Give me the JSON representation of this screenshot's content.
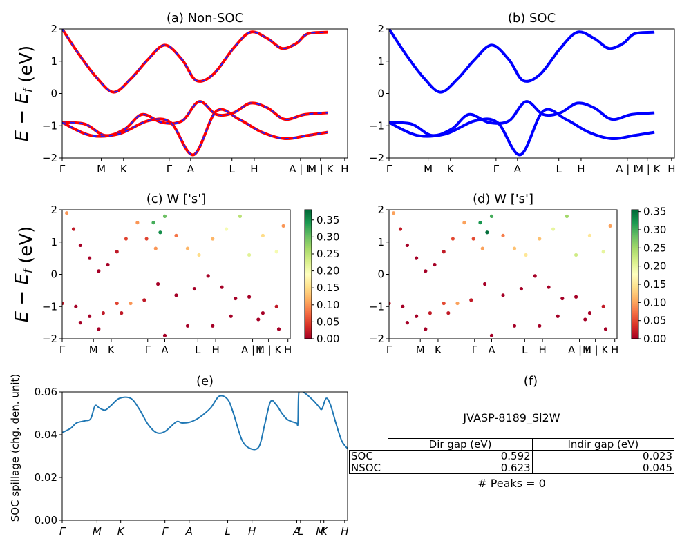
{
  "chart_data": [
    {
      "id": "a",
      "type": "line",
      "title": "(a) Non-SOC",
      "ylabel": "E − E_f (eV)",
      "ylim": [
        -2,
        2
      ],
      "yticks": [
        "2",
        "1",
        "0",
        "−1",
        "−2"
      ],
      "kpath_labels": [
        "Γ",
        "M",
        "K",
        "Γ",
        "A",
        "L",
        "H",
        "A | L",
        "M | K",
        "H"
      ],
      "series": [
        {
          "values": [
            [
              0,
              2.0
            ],
            [
              0.06,
              1.2
            ],
            [
              0.12,
              0.5
            ],
            [
              0.18,
              0.04
            ],
            [
              0.24,
              0.45
            ],
            [
              0.3,
              1.05
            ],
            [
              0.36,
              1.5
            ],
            [
              0.42,
              1.05
            ],
            [
              0.47,
              0.4
            ],
            [
              0.53,
              0.6
            ],
            [
              0.6,
              1.4
            ],
            [
              0.66,
              1.9
            ],
            [
              0.72,
              1.7
            ],
            [
              0.77,
              1.4
            ],
            [
              0.82,
              1.55
            ],
            [
              0.86,
              1.85
            ],
            [
              0.93,
              1.9
            ]
          ]
        },
        {
          "values": [
            [
              0,
              -0.9
            ],
            [
              0.08,
              -0.95
            ],
            [
              0.15,
              -1.3
            ],
            [
              0.22,
              -1.1
            ],
            [
              0.28,
              -0.65
            ],
            [
              0.35,
              -0.9
            ],
            [
              0.42,
              -0.85
            ],
            [
              0.48,
              -0.25
            ],
            [
              0.54,
              -0.65
            ],
            [
              0.6,
              -0.6
            ],
            [
              0.66,
              -0.3
            ],
            [
              0.72,
              -0.45
            ],
            [
              0.78,
              -0.8
            ],
            [
              0.85,
              -0.65
            ],
            [
              0.93,
              -0.6
            ]
          ]
        },
        {
          "values": [
            [
              0,
              -0.9
            ],
            [
              0.1,
              -1.3
            ],
            [
              0.2,
              -1.25
            ],
            [
              0.3,
              -0.85
            ],
            [
              0.38,
              -0.9
            ],
            [
              0.46,
              -1.9
            ],
            [
              0.54,
              -0.55
            ],
            [
              0.62,
              -0.8
            ],
            [
              0.7,
              -1.2
            ],
            [
              0.78,
              -1.4
            ],
            [
              0.86,
              -1.3
            ],
            [
              0.93,
              -1.2
            ]
          ]
        }
      ],
      "color": "#ff0000",
      "dash_color": "#1f1fff"
    },
    {
      "id": "b",
      "type": "line",
      "title": "(b) SOC",
      "ylabel": "",
      "ylim": [
        -2,
        2
      ],
      "yticks": [
        "2",
        "1",
        "0",
        "−1",
        "−2"
      ],
      "kpath_labels": [
        "Γ",
        "M",
        "K",
        "Γ",
        "A",
        "L",
        "H",
        "A | L",
        "M | K",
        "H"
      ],
      "series": [
        {
          "values": [
            [
              0,
              2.0
            ],
            [
              0.06,
              1.2
            ],
            [
              0.12,
              0.5
            ],
            [
              0.18,
              0.04
            ],
            [
              0.24,
              0.45
            ],
            [
              0.3,
              1.05
            ],
            [
              0.36,
              1.5
            ],
            [
              0.42,
              1.05
            ],
            [
              0.47,
              0.4
            ],
            [
              0.53,
              0.6
            ],
            [
              0.6,
              1.4
            ],
            [
              0.66,
              1.9
            ],
            [
              0.72,
              1.7
            ],
            [
              0.77,
              1.4
            ],
            [
              0.82,
              1.55
            ],
            [
              0.86,
              1.85
            ],
            [
              0.93,
              1.9
            ]
          ]
        },
        {
          "values": [
            [
              0,
              -0.9
            ],
            [
              0.08,
              -0.95
            ],
            [
              0.15,
              -1.3
            ],
            [
              0.22,
              -1.1
            ],
            [
              0.28,
              -0.65
            ],
            [
              0.35,
              -0.9
            ],
            [
              0.42,
              -0.85
            ],
            [
              0.48,
              -0.25
            ],
            [
              0.54,
              -0.65
            ],
            [
              0.6,
              -0.6
            ],
            [
              0.66,
              -0.3
            ],
            [
              0.72,
              -0.45
            ],
            [
              0.78,
              -0.8
            ],
            [
              0.85,
              -0.65
            ],
            [
              0.93,
              -0.6
            ]
          ]
        },
        {
          "values": [
            [
              0,
              -0.9
            ],
            [
              0.1,
              -1.3
            ],
            [
              0.2,
              -1.25
            ],
            [
              0.3,
              -0.85
            ],
            [
              0.38,
              -0.9
            ],
            [
              0.46,
              -1.9
            ],
            [
              0.54,
              -0.55
            ],
            [
              0.62,
              -0.8
            ],
            [
              0.7,
              -1.2
            ],
            [
              0.78,
              -1.4
            ],
            [
              0.86,
              -1.3
            ],
            [
              0.93,
              -1.2
            ]
          ]
        }
      ],
      "color": "#0000ff"
    },
    {
      "id": "c",
      "type": "scatter",
      "title": "(c)  W ['s']",
      "ylabel": "E − E_f (eV)",
      "ylim": [
        -2,
        2
      ],
      "yticks": [
        "2",
        "1",
        "0",
        "−1",
        "−2"
      ],
      "kpath_labels": [
        "Γ",
        "M",
        "K",
        "Γ",
        "A",
        "L",
        "H",
        "A | L",
        "M | K",
        "H"
      ],
      "colorbar": {
        "min": 0.0,
        "max": 0.38,
        "ticks": [
          "0.00",
          "0.05",
          "0.10",
          "0.15",
          "0.20",
          "0.25",
          "0.30",
          "0.35"
        ]
      },
      "points": [
        [
          0.02,
          1.9,
          0.1
        ],
        [
          0.05,
          1.4,
          0.02
        ],
        [
          0.08,
          0.9,
          0.0
        ],
        [
          0.12,
          0.5,
          0.0
        ],
        [
          0.16,
          0.1,
          0.0
        ],
        [
          0.2,
          0.3,
          0.0
        ],
        [
          0.24,
          0.7,
          0.02
        ],
        [
          0.28,
          1.1,
          0.05
        ],
        [
          0.33,
          1.6,
          0.1
        ],
        [
          0.37,
          1.1,
          0.05
        ],
        [
          0.41,
          0.8,
          0.1
        ],
        [
          0.4,
          1.6,
          0.32
        ],
        [
          0.43,
          1.3,
          0.35
        ],
        [
          0.45,
          1.8,
          0.3
        ],
        [
          0.5,
          1.2,
          0.08
        ],
        [
          0.55,
          0.8,
          0.12
        ],
        [
          0.6,
          0.6,
          0.15
        ],
        [
          0.66,
          1.1,
          0.12
        ],
        [
          0.72,
          1.4,
          0.2
        ],
        [
          0.78,
          1.8,
          0.25
        ],
        [
          0.82,
          0.6,
          0.22
        ],
        [
          0.88,
          1.2,
          0.15
        ],
        [
          0.94,
          0.7,
          0.2
        ],
        [
          0.97,
          1.5,
          0.1
        ],
        [
          0.0,
          -0.9,
          0.02
        ],
        [
          0.06,
          -1.0,
          0.0
        ],
        [
          0.12,
          -1.3,
          0.0
        ],
        [
          0.18,
          -1.2,
          0.02
        ],
        [
          0.24,
          -0.9,
          0.05
        ],
        [
          0.3,
          -0.9,
          0.1
        ],
        [
          0.36,
          -0.8,
          0.02
        ],
        [
          0.42,
          -0.3,
          0.0
        ],
        [
          0.5,
          -0.65,
          0.0
        ],
        [
          0.58,
          -0.45,
          0.0
        ],
        [
          0.64,
          -0.05,
          0.0
        ],
        [
          0.7,
          -0.4,
          0.0
        ],
        [
          0.76,
          -0.75,
          0.0
        ],
        [
          0.82,
          -0.7,
          0.0
        ],
        [
          0.88,
          -1.2,
          0.0
        ],
        [
          0.94,
          -1.0,
          0.02
        ],
        [
          0.08,
          -1.5,
          0.0
        ],
        [
          0.16,
          -1.7,
          0.0
        ],
        [
          0.26,
          -1.2,
          0.02
        ],
        [
          0.45,
          -1.9,
          0.0
        ],
        [
          0.55,
          -1.6,
          0.0
        ],
        [
          0.66,
          -1.6,
          0.0
        ],
        [
          0.74,
          -1.3,
          0.0
        ],
        [
          0.86,
          -1.4,
          0.0
        ],
        [
          0.95,
          -1.7,
          0.0
        ]
      ]
    },
    {
      "id": "d",
      "type": "scatter",
      "title": "(d) W ['s']",
      "ylabel": "",
      "ylim": [
        -2,
        2
      ],
      "yticks": [
        "2",
        "1",
        "0",
        "−1",
        "−2"
      ],
      "kpath_labels": [
        "Γ",
        "M",
        "K",
        "Γ",
        "A",
        "L",
        "H",
        "A | L",
        "M | K",
        "H"
      ],
      "colorbar": {
        "min": 0.0,
        "max": 0.355,
        "ticks": [
          "0.00",
          "0.05",
          "0.10",
          "0.15",
          "0.20",
          "0.25",
          "0.30",
          "0.35"
        ]
      },
      "points": [
        [
          0.02,
          1.9,
          0.1
        ],
        [
          0.05,
          1.4,
          0.02
        ],
        [
          0.08,
          0.9,
          0.0
        ],
        [
          0.12,
          0.5,
          0.0
        ],
        [
          0.16,
          0.1,
          0.0
        ],
        [
          0.2,
          0.3,
          0.0
        ],
        [
          0.24,
          0.7,
          0.02
        ],
        [
          0.28,
          1.1,
          0.05
        ],
        [
          0.33,
          1.6,
          0.1
        ],
        [
          0.37,
          1.1,
          0.05
        ],
        [
          0.41,
          0.8,
          0.1
        ],
        [
          0.4,
          1.6,
          0.32
        ],
        [
          0.43,
          1.3,
          0.35
        ],
        [
          0.45,
          1.8,
          0.3
        ],
        [
          0.5,
          1.2,
          0.08
        ],
        [
          0.55,
          0.8,
          0.12
        ],
        [
          0.6,
          0.6,
          0.15
        ],
        [
          0.66,
          1.1,
          0.12
        ],
        [
          0.72,
          1.4,
          0.2
        ],
        [
          0.78,
          1.8,
          0.25
        ],
        [
          0.82,
          0.6,
          0.22
        ],
        [
          0.88,
          1.2,
          0.15
        ],
        [
          0.94,
          0.7,
          0.2
        ],
        [
          0.97,
          1.5,
          0.1
        ],
        [
          0.0,
          -0.9,
          0.02
        ],
        [
          0.06,
          -1.0,
          0.0
        ],
        [
          0.12,
          -1.3,
          0.0
        ],
        [
          0.18,
          -1.2,
          0.02
        ],
        [
          0.24,
          -0.9,
          0.05
        ],
        [
          0.3,
          -0.9,
          0.1
        ],
        [
          0.36,
          -0.8,
          0.02
        ],
        [
          0.42,
          -0.3,
          0.0
        ],
        [
          0.5,
          -0.65,
          0.0
        ],
        [
          0.58,
          -0.45,
          0.0
        ],
        [
          0.64,
          -0.05,
          0.0
        ],
        [
          0.7,
          -0.4,
          0.0
        ],
        [
          0.76,
          -0.75,
          0.0
        ],
        [
          0.82,
          -0.7,
          0.0
        ],
        [
          0.88,
          -1.2,
          0.0
        ],
        [
          0.94,
          -1.0,
          0.02
        ],
        [
          0.08,
          -1.5,
          0.0
        ],
        [
          0.16,
          -1.7,
          0.0
        ],
        [
          0.26,
          -1.2,
          0.02
        ],
        [
          0.45,
          -1.9,
          0.0
        ],
        [
          0.55,
          -1.6,
          0.0
        ],
        [
          0.66,
          -1.6,
          0.0
        ],
        [
          0.74,
          -1.3,
          0.0
        ],
        [
          0.86,
          -1.4,
          0.0
        ],
        [
          0.95,
          -1.7,
          0.0
        ]
      ]
    },
    {
      "id": "e",
      "type": "line",
      "title": "(e)",
      "ylabel": "SOC spillage (chg. den. unit)",
      "ylim": [
        0.0,
        0.06
      ],
      "yticks": [
        "0.06",
        "0.04",
        "0.02",
        "0.00"
      ],
      "kpath_labels": [
        "Γ",
        "M",
        "K",
        "Γ",
        "A",
        "L",
        "H",
        "A",
        "L",
        "M",
        "K",
        "H"
      ],
      "color": "#1f77b4",
      "series": [
        {
          "values": [
            [
              0.0,
              0.041
            ],
            [
              0.03,
              0.043
            ],
            [
              0.05,
              0.0455
            ],
            [
              0.08,
              0.0465
            ],
            [
              0.1,
              0.0475
            ],
            [
              0.115,
              0.0535
            ],
            [
              0.13,
              0.0525
            ],
            [
              0.15,
              0.0515
            ],
            [
              0.17,
              0.0535
            ],
            [
              0.2,
              0.057
            ],
            [
              0.24,
              0.057
            ],
            [
              0.27,
              0.052
            ],
            [
              0.3,
              0.045
            ],
            [
              0.33,
              0.041
            ],
            [
              0.36,
              0.0415
            ],
            [
              0.4,
              0.046
            ],
            [
              0.42,
              0.0455
            ],
            [
              0.45,
              0.046
            ],
            [
              0.48,
              0.048
            ],
            [
              0.52,
              0.0525
            ],
            [
              0.55,
              0.058
            ],
            [
              0.58,
              0.0565
            ],
            [
              0.6,
              0.05
            ],
            [
              0.63,
              0.0375
            ],
            [
              0.66,
              0.0335
            ],
            [
              0.69,
              0.0345
            ],
            [
              0.71,
              0.045
            ],
            [
              0.73,
              0.0555
            ],
            [
              0.75,
              0.054
            ],
            [
              0.77,
              0.05
            ],
            [
              0.79,
              0.047
            ],
            [
              0.82,
              0.0455
            ],
            [
              0.826,
              0.0455
            ],
            [
              0.83,
              0.0605
            ],
            [
              0.85,
              0.0595
            ],
            [
              0.88,
              0.056
            ],
            [
              0.9,
              0.053
            ],
            [
              0.91,
              0.052
            ],
            [
              0.925,
              0.057
            ],
            [
              0.94,
              0.054
            ],
            [
              0.96,
              0.045
            ],
            [
              0.98,
              0.037
            ],
            [
              1.0,
              0.0335
            ]
          ]
        }
      ]
    }
  ],
  "panel_f": {
    "title": "(f)",
    "material": "JVASP-8189_Si2W",
    "table": {
      "headers": [
        "Dir gap (eV)",
        "Indir gap (eV)"
      ],
      "rows": [
        {
          "label": "SOC",
          "dir": "0.592",
          "indir": "0.023"
        },
        {
          "label": "NSOC",
          "dir": "0.623",
          "indir": "0.045"
        }
      ]
    },
    "peaks": "# Peaks = 0"
  }
}
